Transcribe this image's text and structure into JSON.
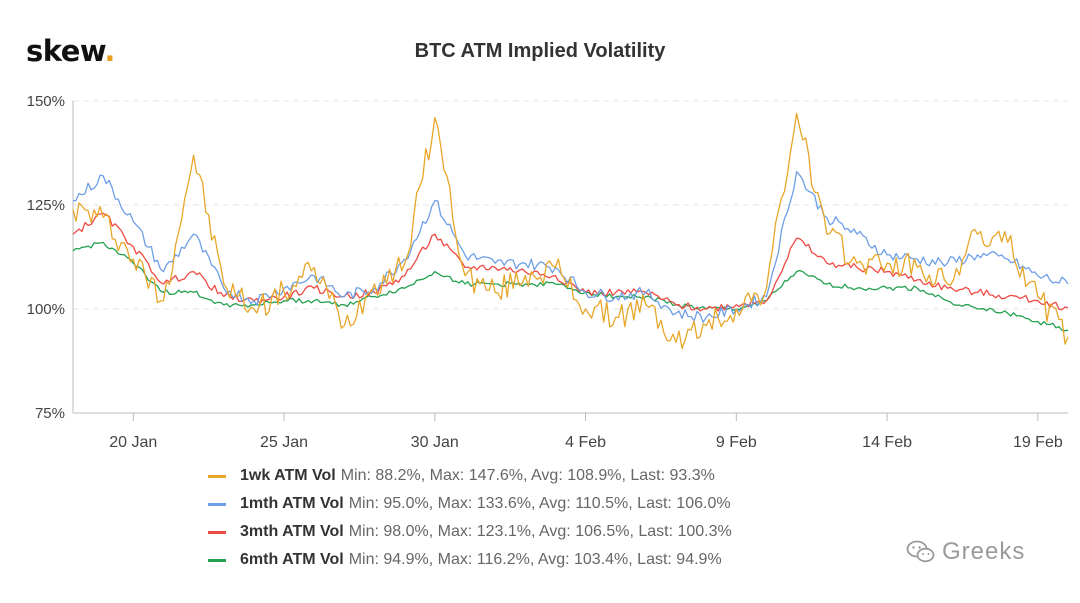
{
  "brand": {
    "name": "skew",
    "dot": "."
  },
  "watermark": {
    "text": "Greeks"
  },
  "chart_data": {
    "type": "line",
    "title": "BTC ATM Implied Volatility",
    "xlabel": "",
    "ylabel": "",
    "x_range": [
      "2020-01-18",
      "2020-02-20"
    ],
    "x_ticks": [
      "20 Jan",
      "25 Jan",
      "30 Jan",
      "4 Feb",
      "9 Feb",
      "14 Feb",
      "19 Feb"
    ],
    "ylim": [
      75,
      150
    ],
    "y_ticks": [
      "75%",
      "100%",
      "125%",
      "150%"
    ],
    "grid": "horizontal dashed",
    "legend_position": "bottom",
    "series": [
      {
        "name": "1wk ATM Vol",
        "stats": "Min: 88.2%, Max: 147.6%, Avg: 108.9%, Last: 93.3%",
        "color": "#e8a628",
        "x": [
          "2020-01-18",
          "2020-01-19",
          "2020-01-20",
          "2020-01-21",
          "2020-01-22",
          "2020-01-23",
          "2020-01-24",
          "2020-01-25",
          "2020-01-26",
          "2020-01-27",
          "2020-01-28",
          "2020-01-29",
          "2020-01-30",
          "2020-01-31",
          "2020-02-01",
          "2020-02-02",
          "2020-02-03",
          "2020-02-04",
          "2020-02-05",
          "2020-02-06",
          "2020-02-07",
          "2020-02-08",
          "2020-02-09",
          "2020-02-10",
          "2020-02-11",
          "2020-02-12",
          "2020-02-13",
          "2020-02-14",
          "2020-02-15",
          "2020-02-16",
          "2020-02-17",
          "2020-02-18",
          "2020-02-19",
          "2020-02-20"
        ],
        "values": [
          124,
          122,
          112,
          102,
          137,
          106,
          100,
          104,
          110,
          96,
          106,
          111,
          146,
          108,
          104,
          108,
          110,
          100,
          98,
          101,
          92,
          96,
          100,
          105,
          147,
          118,
          111,
          111,
          110,
          106,
          118,
          116,
          103,
          93.3
        ]
      },
      {
        "name": "1mth ATM Vol",
        "stats": "Min: 95.0%, Max: 133.6%, Avg: 110.5%, Last: 106.0%",
        "color": "#6d9fe6",
        "x": [
          "2020-01-18",
          "2020-01-19",
          "2020-01-20",
          "2020-01-21",
          "2020-01-22",
          "2020-01-23",
          "2020-01-24",
          "2020-01-25",
          "2020-01-26",
          "2020-01-27",
          "2020-01-28",
          "2020-01-29",
          "2020-01-30",
          "2020-01-31",
          "2020-02-01",
          "2020-02-02",
          "2020-02-03",
          "2020-02-04",
          "2020-02-05",
          "2020-02-06",
          "2020-02-07",
          "2020-02-08",
          "2020-02-09",
          "2020-02-10",
          "2020-02-11",
          "2020-02-12",
          "2020-02-13",
          "2020-02-14",
          "2020-02-15",
          "2020-02-16",
          "2020-02-17",
          "2020-02-18",
          "2020-02-19",
          "2020-02-20"
        ],
        "values": [
          126,
          132,
          121,
          109,
          118,
          105,
          102,
          105,
          108,
          103,
          105,
          112,
          126,
          113,
          111,
          111,
          110,
          104,
          103,
          104,
          99,
          98,
          100,
          103,
          133,
          122,
          118,
          113,
          112,
          111,
          113,
          112,
          108,
          106
        ]
      },
      {
        "name": "3mth ATM Vol",
        "stats": "Min: 98.0%, Max: 123.1%, Avg: 106.5%, Last: 100.3%",
        "color": "#ee4a44",
        "x": [
          "2020-01-18",
          "2020-01-19",
          "2020-01-20",
          "2020-01-21",
          "2020-01-22",
          "2020-01-23",
          "2020-01-24",
          "2020-01-25",
          "2020-01-26",
          "2020-01-27",
          "2020-01-28",
          "2020-01-29",
          "2020-01-30",
          "2020-01-31",
          "2020-02-01",
          "2020-02-02",
          "2020-02-03",
          "2020-02-04",
          "2020-02-05",
          "2020-02-06",
          "2020-02-07",
          "2020-02-08",
          "2020-02-09",
          "2020-02-10",
          "2020-02-11",
          "2020-02-12",
          "2020-02-13",
          "2020-02-14",
          "2020-02-15",
          "2020-02-16",
          "2020-02-17",
          "2020-02-18",
          "2020-02-19",
          "2020-02-20"
        ],
        "values": [
          118,
          123,
          115,
          106,
          109,
          103,
          102,
          103,
          105,
          103,
          104,
          108,
          118,
          110,
          110,
          109,
          108,
          104,
          104,
          104,
          101,
          100,
          101,
          102,
          117,
          111,
          110,
          109,
          107,
          105,
          104,
          103,
          102,
          100.3
        ]
      },
      {
        "name": "6mth ATM Vol",
        "stats": "Min: 94.9%, Max: 116.2%, Avg: 103.4%, Last: 94.9%",
        "color": "#24a150",
        "x": [
          "2020-01-18",
          "2020-01-19",
          "2020-01-20",
          "2020-01-21",
          "2020-01-22",
          "2020-01-23",
          "2020-01-24",
          "2020-01-25",
          "2020-01-26",
          "2020-01-27",
          "2020-01-28",
          "2020-01-29",
          "2020-01-30",
          "2020-01-31",
          "2020-02-01",
          "2020-02-02",
          "2020-02-03",
          "2020-02-04",
          "2020-02-05",
          "2020-02-06",
          "2020-02-07",
          "2020-02-08",
          "2020-02-09",
          "2020-02-10",
          "2020-02-11",
          "2020-02-12",
          "2020-02-13",
          "2020-02-14",
          "2020-02-15",
          "2020-02-16",
          "2020-02-17",
          "2020-02-18",
          "2020-02-19",
          "2020-02-20"
        ],
        "values": [
          114,
          116,
          111,
          104,
          104,
          101,
          101,
          102,
          102,
          101,
          103,
          105,
          109,
          106,
          106,
          106,
          106,
          104,
          103,
          103,
          101,
          100,
          100,
          102,
          109,
          106,
          105,
          105,
          105,
          102,
          100,
          99,
          97,
          94.9
        ]
      }
    ]
  }
}
